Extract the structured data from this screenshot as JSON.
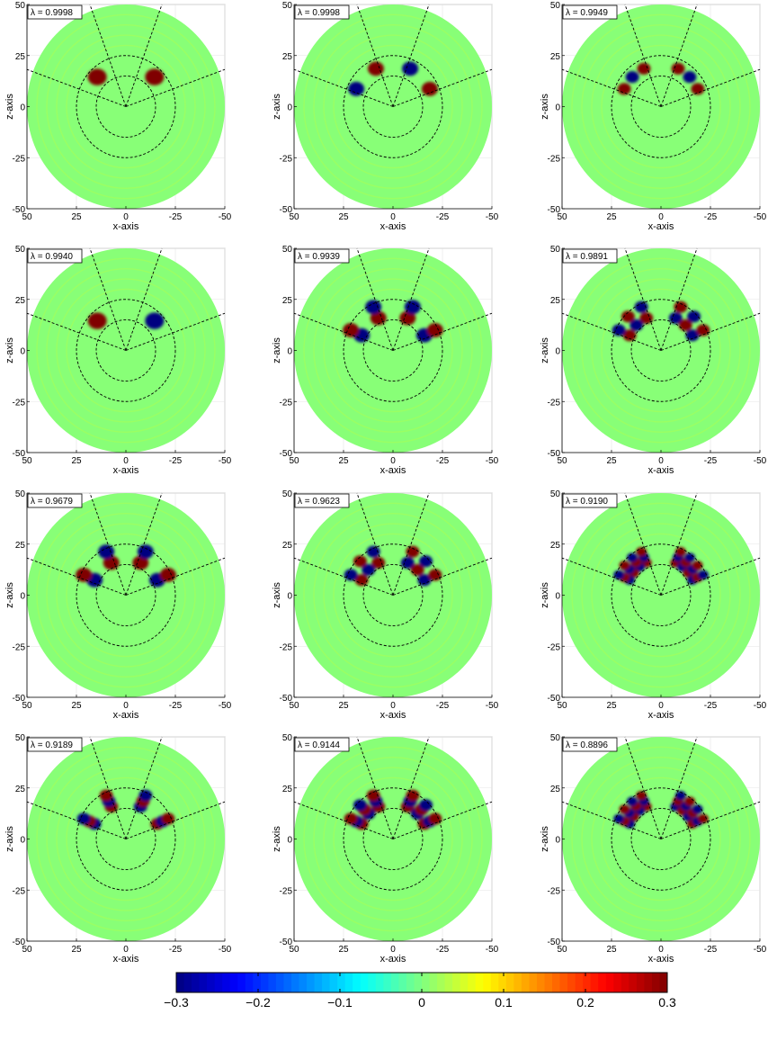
{
  "chart_data": {
    "type": "heatmap",
    "layout": {
      "rows": 4,
      "cols": 3
    },
    "panel_axes": {
      "xlabel": "x-axis",
      "ylabel": "z-axis",
      "xlim": [
        50,
        -50
      ],
      "ylim": [
        -50,
        50
      ],
      "xticks": [
        50,
        25,
        0,
        -25,
        -50
      ],
      "yticks": [
        50,
        25,
        0,
        -25,
        -50
      ],
      "xtick_labels": [
        "50",
        "25",
        "0",
        "-25",
        "-50"
      ],
      "ytick_labels": [
        "50",
        "25",
        "0",
        "-25",
        "-50"
      ]
    },
    "overlay": {
      "outer_radius": 50,
      "dashed_circle_radii": [
        15,
        25
      ],
      "dashed_ray_angles_deg_from_vertical": [
        -70,
        -20,
        20,
        70
      ],
      "line_style": "dashed"
    },
    "panels": [
      {
        "label": "λ = 0.9998",
        "eigenvalue": 0.9998
      },
      {
        "label": "λ = 0.9998",
        "eigenvalue": 0.9998
      },
      {
        "label": "λ = 0.9949",
        "eigenvalue": 0.9949
      },
      {
        "label": "λ = 0.9940",
        "eigenvalue": 0.994
      },
      {
        "label": "λ = 0.9939",
        "eigenvalue": 0.9939
      },
      {
        "label": "λ = 0.9891",
        "eigenvalue": 0.9891
      },
      {
        "label": "λ = 0.9679",
        "eigenvalue": 0.9679
      },
      {
        "label": "λ = 0.9623",
        "eigenvalue": 0.9623
      },
      {
        "label": "λ = 0.9190",
        "eigenvalue": 0.919
      },
      {
        "label": "λ = 0.9189",
        "eigenvalue": 0.9189
      },
      {
        "label": "λ = 0.9144",
        "eigenvalue": 0.9144
      },
      {
        "label": "λ = 0.8896",
        "eigenvalue": 0.8896
      }
    ],
    "colorbar": {
      "range": [
        -0.3,
        0.3
      ],
      "ticks": [
        -0.3,
        -0.2,
        -0.1,
        0,
        0.1,
        0.2,
        0.3
      ],
      "tick_labels": [
        "−0.3",
        "−0.2",
        "−0.1",
        "0",
        "0.1",
        "0.2",
        "0.3"
      ],
      "colormap": "jet",
      "orientation": "horizontal",
      "placement": "bottom"
    },
    "grid": true
  }
}
